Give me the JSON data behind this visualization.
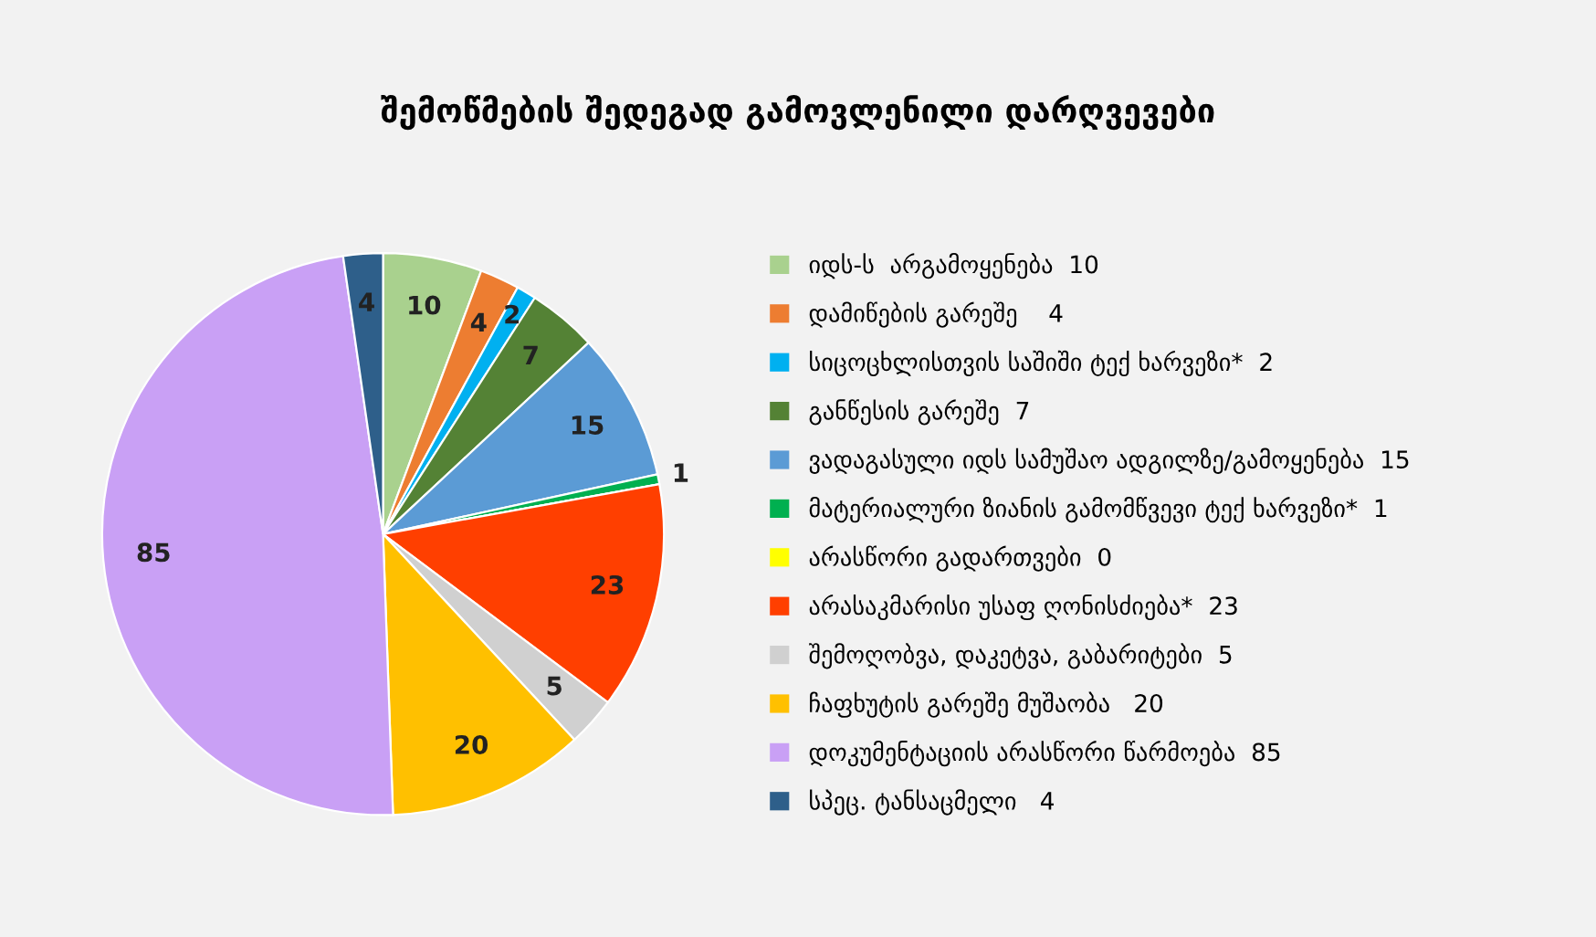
{
  "chart_data": {
    "type": "pie",
    "title": "შემოწმების შედეგად გამოვლენილი დარღვევები",
    "categories": [
      "იდს-ს  არგამოყენება  10",
      "დამიწების გარეშე    4",
      "სიცოცხლისთვის საშიში ტექ ხარვეზი*  2",
      "განწესის გარეშე  7",
      "ვადაგასული იდს სამუშაო ადგილზე/გამოყენება  15",
      "მატერიალური ზიანის გამომწვევი ტექ ხარვეზი*  1",
      "არასწორი გადართვები  0",
      "არასაკმარისი უსაფ ღონისძიება*  23",
      "შემოღობვა, დაკეტვა, გაბარიტები  5",
      "ჩაფხუტის გარეშე მუშაობა   20",
      "დოკუმენტაციის არასწორი წარმოება  85",
      "სპეც. ტანსაცმელი   4"
    ],
    "values": [
      10,
      4,
      2,
      7,
      15,
      1,
      0,
      23,
      5,
      20,
      85,
      4
    ],
    "value_labels": [
      "10",
      "4",
      "2",
      "7",
      "15",
      "1",
      null,
      "23",
      "5",
      "20",
      "85",
      "4"
    ],
    "colors": [
      "#a9d18e",
      "#ed7d31",
      "#00b0f0",
      "#548235",
      "#5b9bd5",
      "#00b050",
      "#ffff00",
      "#ff3f00",
      "#d0d0d0",
      "#ffc000",
      "#c9a0f5",
      "#2e5f8a"
    ],
    "legend": "right"
  }
}
